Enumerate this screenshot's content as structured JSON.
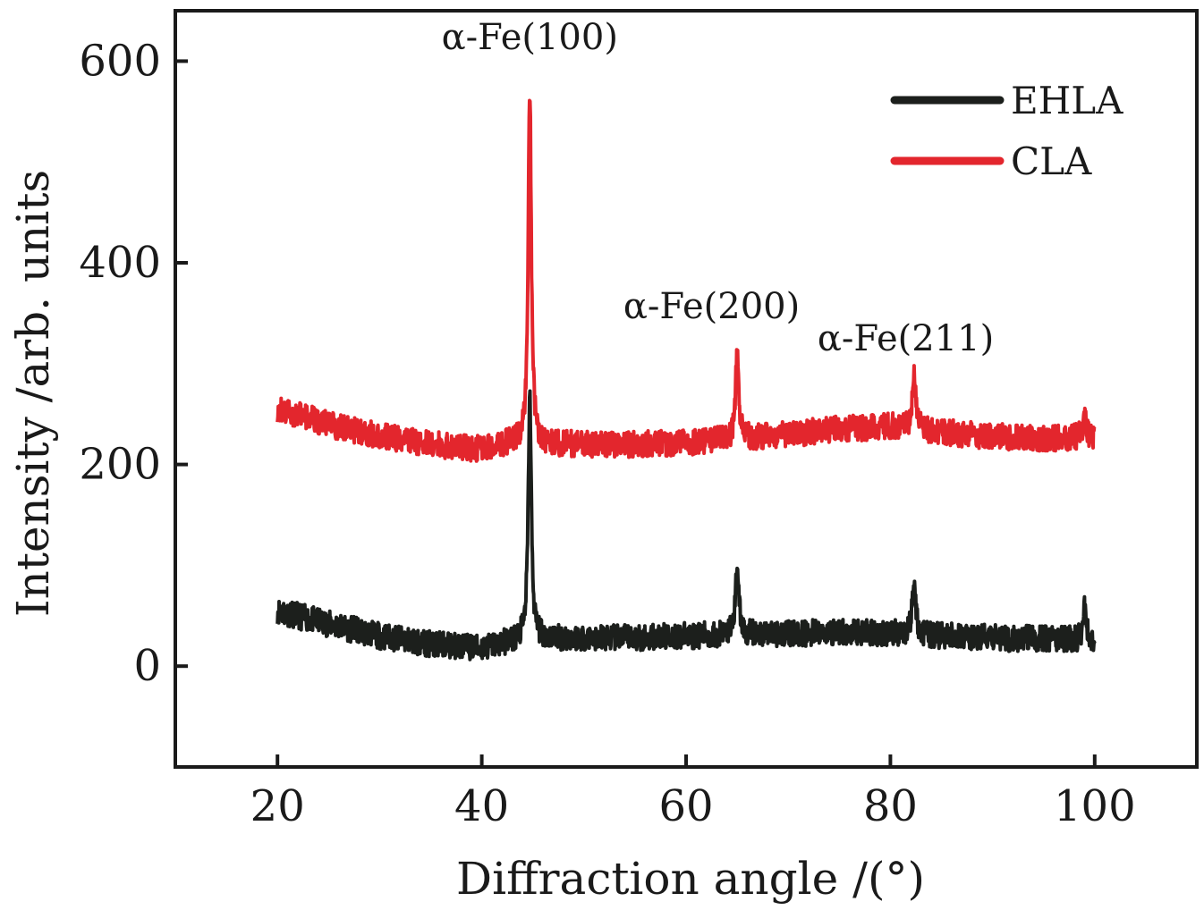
{
  "chart_data": {
    "type": "line",
    "xlabel": "Diffraction angle /(°)",
    "ylabel": "Intensity /arb. units",
    "xlim": [
      10,
      110
    ],
    "ylim": [
      -100,
      650
    ],
    "xticks": [
      20,
      40,
      60,
      80,
      100
    ],
    "yticks": [
      0,
      200,
      400,
      600
    ],
    "grid": false,
    "legend_position": "top-right",
    "series": [
      {
        "name": "EHLA",
        "color": "#1c1f1c",
        "baseline": [
          [
            20,
            55
          ],
          [
            25,
            42
          ],
          [
            30,
            30
          ],
          [
            35,
            22
          ],
          [
            40,
            18
          ],
          [
            43,
            25
          ],
          [
            46,
            28
          ],
          [
            50,
            28
          ],
          [
            55,
            28
          ],
          [
            60,
            30
          ],
          [
            65,
            32
          ],
          [
            70,
            32
          ],
          [
            75,
            34
          ],
          [
            80,
            33
          ],
          [
            85,
            30
          ],
          [
            90,
            28
          ],
          [
            95,
            27
          ],
          [
            100,
            26
          ]
        ],
        "peaks": [
          {
            "x": 44.7,
            "y": 268
          },
          {
            "x": 65.0,
            "y": 105
          },
          {
            "x": 82.3,
            "y": 90
          },
          {
            "x": 99.0,
            "y": 58
          }
        ]
      },
      {
        "name": "CLA",
        "color": "#e3262d",
        "baseline": [
          [
            20,
            255
          ],
          [
            25,
            240
          ],
          [
            30,
            228
          ],
          [
            35,
            220
          ],
          [
            40,
            215
          ],
          [
            43,
            222
          ],
          [
            46,
            220
          ],
          [
            50,
            220
          ],
          [
            55,
            220
          ],
          [
            60,
            222
          ],
          [
            65,
            225
          ],
          [
            70,
            230
          ],
          [
            75,
            235
          ],
          [
            80,
            238
          ],
          [
            85,
            232
          ],
          [
            90,
            228
          ],
          [
            95,
            226
          ],
          [
            100,
            228
          ]
        ],
        "peaks": [
          {
            "x": 44.7,
            "y": 575
          },
          {
            "x": 65.0,
            "y": 318
          },
          {
            "x": 82.3,
            "y": 295
          },
          {
            "x": 99.0,
            "y": 248
          }
        ]
      }
    ],
    "annotations": [
      {
        "text": "α-Fe(100)",
        "x": 44.7,
        "y": 612
      },
      {
        "text": "α-Fe(200)",
        "x": 62.5,
        "y": 345
      },
      {
        "text": "α-Fe(211)",
        "x": 81.5,
        "y": 313
      }
    ]
  }
}
